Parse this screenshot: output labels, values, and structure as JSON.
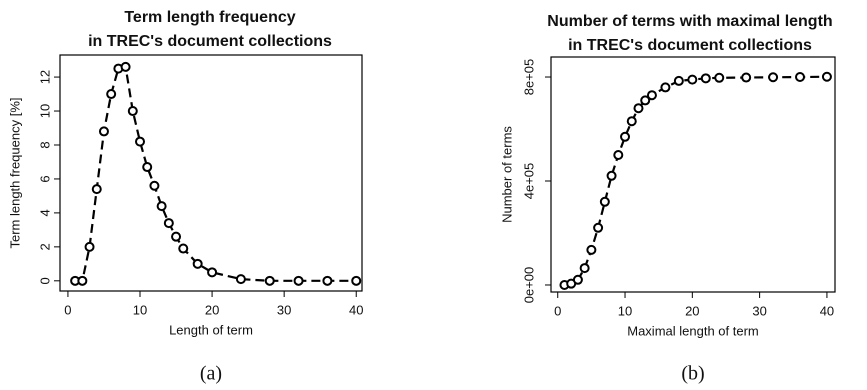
{
  "chart_data": [
    {
      "type": "line",
      "title": [
        "Term length frequency",
        "in TREC's document collections"
      ],
      "xlabel": "Length of term",
      "ylabel": "Term length frequency [%]",
      "caption": "(a)",
      "x": [
        1,
        2,
        3,
        4,
        5,
        6,
        7,
        8,
        9,
        10,
        11,
        12,
        13,
        14,
        15,
        16,
        18,
        20,
        24,
        28,
        32,
        36,
        40
      ],
      "series": [
        {
          "color": "#000000",
          "values": [
            0,
            0,
            2,
            5.4,
            8.8,
            11,
            12.5,
            12.6,
            10,
            8.2,
            6.7,
            5.6,
            4.4,
            3.4,
            2.6,
            1.9,
            1.0,
            0.5,
            0.1,
            0,
            0,
            0,
            0
          ]
        }
      ],
      "xlim": [
        -1.1,
        40.8
      ],
      "ylim": [
        -0.6,
        13.3
      ],
      "xticks": [
        0,
        10,
        20,
        30,
        40
      ],
      "yticks": [
        0,
        2,
        4,
        6,
        8,
        10,
        12
      ]
    },
    {
      "type": "line",
      "title": [
        "Number of terms with maximal length",
        "in TREC's document collections"
      ],
      "xlabel": "Maximal length of term",
      "ylabel": "Number of terms",
      "caption": "(b)",
      "x": [
        1,
        2,
        3,
        4,
        5,
        6,
        7,
        8,
        9,
        10,
        11,
        12,
        13,
        14,
        16,
        18,
        20,
        22,
        24,
        28,
        32,
        36,
        40
      ],
      "series": [
        {
          "color": "#000000",
          "values": [
            0,
            5000,
            20000,
            65000,
            135000,
            220000,
            320000,
            420000,
            500000,
            570000,
            630000,
            680000,
            710000,
            730000,
            760000,
            785000,
            790000,
            795000,
            797000,
            798000,
            799000,
            800000,
            801000
          ]
        }
      ],
      "xlim": [
        -1.0,
        41.2
      ],
      "ylim": [
        -27000,
        877000
      ],
      "xticks": [
        0,
        10,
        20,
        30,
        40
      ],
      "yticks": [
        {
          "value": 0,
          "label": "0e+00"
        },
        {
          "value": 400000,
          "label": "4e+05"
        },
        {
          "value": 800000,
          "label": "8e+05"
        }
      ]
    }
  ]
}
